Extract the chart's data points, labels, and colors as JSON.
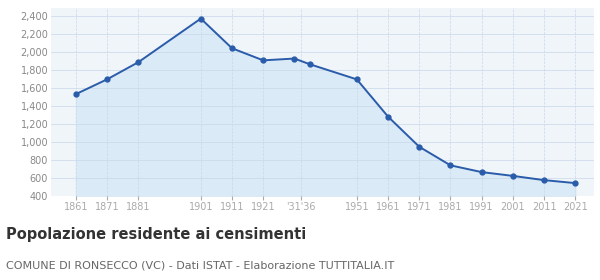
{
  "years": [
    1861,
    1871,
    1881,
    1901,
    1911,
    1921,
    1931,
    1936,
    1951,
    1961,
    1971,
    1981,
    1991,
    2001,
    2011,
    2021
  ],
  "population": [
    1530,
    1694,
    1884,
    2367,
    2038,
    1904,
    1924,
    1860,
    1693,
    1280,
    946,
    740,
    665,
    623,
    576,
    543
  ],
  "y_ticks": [
    400,
    600,
    800,
    1000,
    1200,
    1400,
    1600,
    1800,
    2000,
    2200,
    2400
  ],
  "ylim": [
    400,
    2480
  ],
  "xlim": [
    1853,
    2027
  ],
  "line_color": "#2A5CAA",
  "fill_color": "#daeaf6",
  "marker_color": "#2A5CAA",
  "bg_color": "#f0f5fa",
  "grid_color": "#c8d8e8",
  "title": "Popolazione residente ai censimenti",
  "subtitle": "COMUNE DI RONSECCO (VC) - Dati ISTAT - Elaborazione TUTTITALIA.IT",
  "title_fontsize": 10.5,
  "subtitle_fontsize": 8,
  "tick_label_color": "#4477cc",
  "ytick_label_color": "#888888",
  "x_tick_positions": [
    1861,
    1871,
    1881,
    1901,
    1911,
    1921,
    1933,
    1951,
    1961,
    1971,
    1981,
    1991,
    2001,
    2011,
    2021
  ],
  "x_tick_labels": [
    "1861",
    "1871",
    "1881",
    "1901",
    "1911",
    "1921",
    "'31'36",
    "1951",
    "1961",
    "1971",
    "1981",
    "1991",
    "2001",
    "2011",
    "2021"
  ]
}
